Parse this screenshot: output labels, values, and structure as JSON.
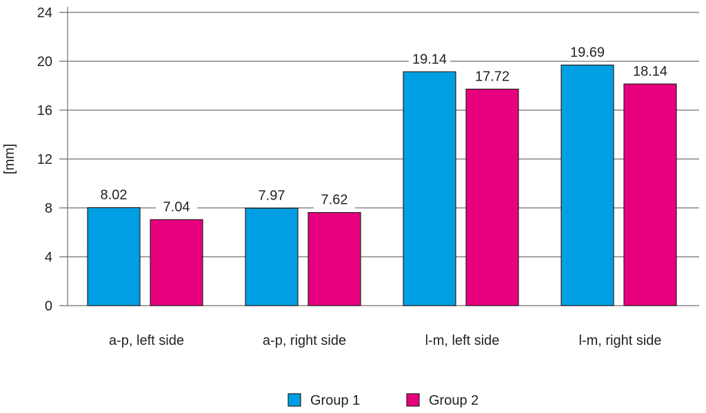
{
  "chart_data": {
    "type": "bar",
    "title": "",
    "xlabel": "",
    "ylabel": "[mm]",
    "categories": [
      "a-p, left side",
      "a-p, right side",
      "l-m, left side",
      "l-m, right side"
    ],
    "series": [
      {
        "name": "Group 1",
        "color": "#009fe3",
        "values": [
          8.02,
          7.97,
          19.14,
          19.69
        ]
      },
      {
        "name": "Group 2",
        "color": "#e6007e",
        "values": [
          7.04,
          7.62,
          17.72,
          18.14
        ]
      }
    ],
    "ylim": [
      0,
      24
    ],
    "yticks": [
      0,
      4,
      8,
      12,
      16,
      20,
      24
    ],
    "grid": true,
    "legend": "bottom-center",
    "data_labels": [
      "8.02",
      "7.97",
      "19.14",
      "19.69",
      "7.04",
      "7.62",
      "17.72",
      "18.14"
    ]
  }
}
